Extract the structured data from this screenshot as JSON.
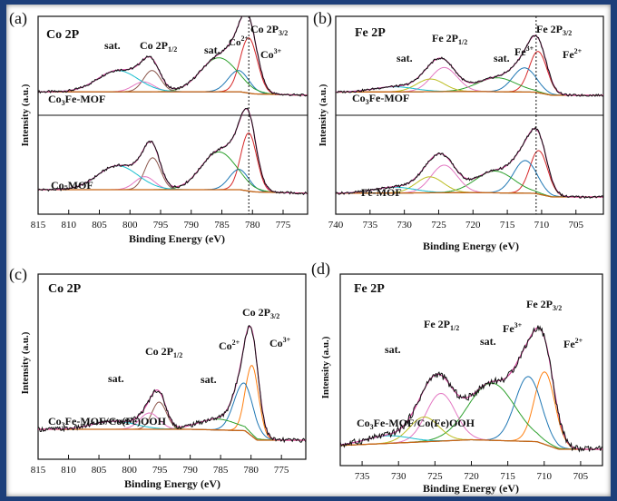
{
  "chart_data": [
    {
      "type": "line",
      "panel_letter": "(a)",
      "panel_title": "Co 2P",
      "xlabel": "Binding Energy (eV)",
      "ylabel": "Intensity (a.u.)",
      "xlim": [
        815,
        771
      ],
      "x_ticks": [
        815,
        810,
        805,
        800,
        795,
        790,
        785,
        780,
        775
      ],
      "reverse_x": true,
      "subpanels": [
        {
          "sample_label": "Co3Fe-MOF",
          "dashed_line_x": 780.6,
          "baseline": [
            [
              815,
              0.05
            ],
            [
              790,
              0.05
            ],
            [
              782,
              0.05
            ],
            [
              779.8,
              0.02
            ],
            [
              771,
              0.0
            ]
          ],
          "peaks": [
            {
              "component": "Co 2P3/2 Co3+",
              "center": 780.6,
              "height": 0.78,
              "width": 1.4,
              "color": "#d62728"
            },
            {
              "component": "Co 2P3/2 Co2+",
              "center": 782.3,
              "height": 0.3,
              "width": 1.7,
              "color": "#1f77b4"
            },
            {
              "component": "sat.",
              "center": 785.5,
              "height": 0.48,
              "width": 3.0,
              "color": "#2ca02c"
            },
            {
              "component": "Co 2P1/2 Co3+",
              "center": 796.4,
              "height": 0.3,
              "width": 1.4,
              "color": "#8c564b"
            },
            {
              "component": "Co 2P1/2 Co2+",
              "center": 797.8,
              "height": 0.14,
              "width": 1.7,
              "color": "#e377c2"
            },
            {
              "component": "sat.",
              "center": 802.0,
              "height": 0.3,
              "width": 3.3,
              "color": "#17becf"
            }
          ]
        },
        {
          "sample_label": "Co-MOF",
          "dashed_line_x": 780.6,
          "baseline": [
            [
              815,
              0.05
            ],
            [
              790,
              0.05
            ],
            [
              782,
              0.05
            ],
            [
              779.8,
              0.02
            ],
            [
              771,
              0.0
            ]
          ],
          "peaks": [
            {
              "component": "Co 2P3/2 Co3+",
              "center": 780.6,
              "height": 0.8,
              "width": 1.3,
              "color": "#d62728"
            },
            {
              "component": "Co 2P3/2 Co2+",
              "center": 782.2,
              "height": 0.28,
              "width": 1.6,
              "color": "#1f77b4"
            },
            {
              "component": "sat.",
              "center": 785.5,
              "height": 0.52,
              "width": 2.9,
              "color": "#2ca02c"
            },
            {
              "component": "Co 2P1/2 Co3+",
              "center": 796.3,
              "height": 0.44,
              "width": 1.3,
              "color": "#8c564b"
            },
            {
              "component": "Co 2P1/2 Co2+",
              "center": 797.6,
              "height": 0.18,
              "width": 1.6,
              "color": "#e377c2"
            },
            {
              "component": "sat.",
              "center": 802.0,
              "height": 0.33,
              "width": 3.3,
              "color": "#17becf"
            }
          ]
        }
      ],
      "annotations": [
        "Co 2P3/2",
        "Co2+",
        "Co3+",
        "sat.",
        "Co 2P1/2",
        "sat."
      ]
    },
    {
      "type": "line",
      "panel_letter": "(b)",
      "panel_title": "Fe 2P",
      "xlabel": "Binding Energy (eV)",
      "ylabel": "Intensity (a.u.)",
      "xlim": [
        740,
        701
      ],
      "x_ticks": [
        740,
        735,
        730,
        725,
        720,
        715,
        710,
        705
      ],
      "reverse_x": true,
      "subpanels": [
        {
          "sample_label": "Co3Fe-MOF",
          "dashed_line_x": 710.8,
          "baseline": [
            [
              740,
              0.05
            ],
            [
              720,
              0.06
            ],
            [
              711,
              0.05
            ],
            [
              708.5,
              0.0
            ],
            [
              701,
              0.0
            ]
          ],
          "peaks": [
            {
              "component": "Fe 2P3/2 Fe2+",
              "center": 710.5,
              "height": 0.65,
              "width": 1.3,
              "color": "#d62728"
            },
            {
              "component": "Fe 2P3/2 Fe3+",
              "center": 712.5,
              "height": 0.38,
              "width": 1.7,
              "color": "#1f77b4"
            },
            {
              "component": "sat.",
              "center": 716.5,
              "height": 0.22,
              "width": 2.8,
              "color": "#2ca02c"
            },
            {
              "component": "Fe 2P1/2",
              "center": 724.2,
              "height": 0.38,
              "width": 1.9,
              "color": "#e377c2"
            },
            {
              "component": "Fe 2P1/2",
              "center": 726.2,
              "height": 0.2,
              "width": 2.0,
              "color": "#bcbd22"
            },
            {
              "component": "sat.",
              "center": 731.5,
              "height": 0.08,
              "width": 3.0,
              "color": "#17becf"
            }
          ]
        },
        {
          "sample_label": "Fe-MOF",
          "dashed_line_x": 710.8,
          "baseline": [
            [
              740,
              0.05
            ],
            [
              720,
              0.06
            ],
            [
              711,
              0.05
            ],
            [
              708.5,
              0.0
            ],
            [
              701,
              0.0
            ]
          ],
          "peaks": [
            {
              "component": "Fe 2P3/2 Fe2+",
              "center": 710.4,
              "height": 0.6,
              "width": 1.3,
              "color": "#d62728"
            },
            {
              "component": "Fe 2P3/2 Fe3+",
              "center": 712.4,
              "height": 0.45,
              "width": 1.7,
              "color": "#1f77b4"
            },
            {
              "component": "sat.",
              "center": 716.8,
              "height": 0.3,
              "width": 2.8,
              "color": "#2ca02c"
            },
            {
              "component": "Fe 2P1/2",
              "center": 724.2,
              "height": 0.38,
              "width": 1.9,
              "color": "#e377c2"
            },
            {
              "component": "Fe 2P1/2",
              "center": 726.3,
              "height": 0.22,
              "width": 2.0,
              "color": "#bcbd22"
            },
            {
              "component": "sat.",
              "center": 731.5,
              "height": 0.08,
              "width": 3.0,
              "color": "#17becf"
            }
          ]
        }
      ],
      "annotations": [
        "Fe 2P3/2",
        "Fe3+",
        "Fe2+",
        "sat.",
        "Fe 2P1/2",
        "sat."
      ]
    },
    {
      "type": "line",
      "panel_letter": "(c)",
      "panel_title": "Co 2P",
      "xlabel": "Binding Energy (eV)",
      "ylabel": "Intensity (a.u.)",
      "xlim": [
        815,
        771
      ],
      "x_ticks": [
        815,
        810,
        805,
        800,
        795,
        790,
        785,
        780,
        775
      ],
      "reverse_x": true,
      "subpanels": [
        {
          "sample_label": "Co3Fe-MOF/Co(Fe)OOH",
          "baseline": [
            [
              815,
              0.08
            ],
            [
              790,
              0.08
            ],
            [
              781,
              0.07
            ],
            [
              779,
              0.0
            ],
            [
              771,
              0.0
            ]
          ],
          "peaks": [
            {
              "component": "Co 2P3/2 Co3+",
              "center": 779.8,
              "height": 0.52,
              "width": 1.1,
              "color": "#ff7f0e"
            },
            {
              "component": "Co 2P3/2 Co2+",
              "center": 781.2,
              "height": 0.35,
              "width": 1.6,
              "color": "#1f77b4"
            },
            {
              "component": "sat.",
              "center": 785.5,
              "height": 0.08,
              "width": 3.2,
              "color": "#2ca02c"
            },
            {
              "component": "Co 2P1/2 Co3+",
              "center": 795.1,
              "height": 0.2,
              "width": 1.2,
              "color": "#8c564b"
            },
            {
              "component": "Co 2P1/2 Co2+",
              "center": 796.7,
              "height": 0.12,
              "width": 1.6,
              "color": "#e377c2"
            },
            {
              "component": "sat.",
              "center": 802.5,
              "height": 0.06,
              "width": 3.5,
              "color": "#17becf"
            }
          ]
        }
      ],
      "annotations": [
        "Co 2P3/2",
        "Co2+",
        "Co3+",
        "sat.",
        "Co 2P1/2",
        "sat."
      ]
    },
    {
      "type": "line",
      "panel_letter": "(d)",
      "panel_title": "Fe 2P",
      "xlabel": "Binding Energy (eV)",
      "ylabel": "Intensity (a.u.)",
      "xlim": [
        738,
        702
      ],
      "x_ticks": [
        735,
        730,
        725,
        720,
        715,
        710,
        705
      ],
      "reverse_x": true,
      "subpanels": [
        {
          "sample_label": "Co3Fe-MOF/Co(Fe)OOH",
          "baseline": [
            [
              738,
              0.02
            ],
            [
              720,
              0.05
            ],
            [
              711,
              0.04
            ],
            [
              708,
              0.0
            ],
            [
              702,
              0.0
            ]
          ],
          "peaks": [
            {
              "component": "Fe 2P3/2 Fe2+",
              "center": 709.9,
              "height": 0.38,
              "width": 1.4,
              "color": "#ff7f0e"
            },
            {
              "component": "Fe 2P3/2 Fe3+",
              "center": 712.2,
              "height": 0.34,
              "width": 1.8,
              "color": "#1f77b4"
            },
            {
              "component": "sat.",
              "center": 717.2,
              "height": 0.3,
              "width": 3.2,
              "color": "#2ca02c"
            },
            {
              "component": "Fe 2P1/2",
              "center": 724.2,
              "height": 0.25,
              "width": 2.0,
              "color": "#e377c2"
            },
            {
              "component": "Fe 2P1/2",
              "center": 726.5,
              "height": 0.13,
              "width": 2.0,
              "color": "#bcbd22"
            },
            {
              "component": "sat.",
              "center": 731.5,
              "height": 0.04,
              "width": 3.0,
              "color": "#17becf"
            }
          ]
        }
      ],
      "annotations": [
        "Fe 2P3/2",
        "Fe3+",
        "Fe2+",
        "sat.",
        "Fe 2P1/2",
        "sat."
      ]
    }
  ],
  "colors": {
    "frame_border": "#1d3f7a",
    "baseline": "#c86414",
    "envelope": "#d43f9a",
    "raw_data": "#111111"
  }
}
